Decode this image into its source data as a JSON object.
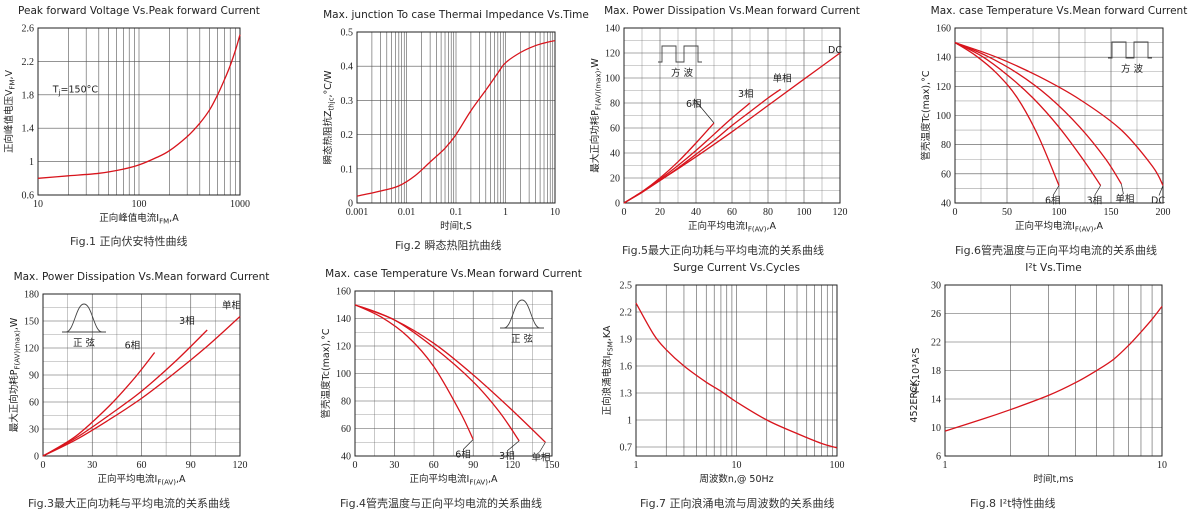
{
  "chart_data": [
    {
      "type": "line",
      "title": "Peak forward Voltage Vs.Peak forward Current",
      "xlabel": "正向峰值电流I_FM,A",
      "ylabel": "正向峰值电压V_FM,V",
      "caption": "Fig.1 正向伏安特性曲线",
      "xscale": "log",
      "xlim": [
        10,
        1000
      ],
      "ylim": [
        0.6,
        2.6
      ],
      "xticks": [
        10,
        100,
        1000
      ],
      "xtick_labels": [
        "10",
        "100",
        "1000"
      ],
      "yticks": [
        0.6,
        1,
        1.4,
        1.8,
        2.2,
        2.6
      ],
      "ytick_labels": [
        "0.6",
        "1",
        "1.4",
        "1.8",
        "2.2",
        "2.6"
      ],
      "grid": "x-log",
      "annotations": [
        {
          "text": "T_j=150°C",
          "x": 14,
          "y": 1.83
        }
      ],
      "series": [
        {
          "x": [
            10,
            20,
            40,
            70,
            100,
            150,
            200,
            300,
            400,
            500,
            600,
            700,
            800,
            900,
            1000
          ],
          "y": [
            0.8,
            0.83,
            0.86,
            0.91,
            0.96,
            1.05,
            1.13,
            1.3,
            1.46,
            1.62,
            1.8,
            1.98,
            2.15,
            2.33,
            2.52
          ]
        }
      ]
    },
    {
      "type": "line",
      "title": "Max. junction To case Thermai Impedance Vs.Time",
      "xlabel": "时间t,S",
      "ylabel": "瞬态热阻抗Z_thjc,°C/W",
      "caption": "Fig.2 瞬态热阻抗曲线",
      "xscale": "log",
      "xlim": [
        0.001,
        10
      ],
      "ylim": [
        0,
        0.5
      ],
      "xticks": [
        0.001,
        0.01,
        0.1,
        1,
        10
      ],
      "xtick_labels": [
        "0.001",
        "0.01",
        "0.1",
        "1",
        "10"
      ],
      "yticks": [
        0,
        0.1,
        0.2,
        0.3,
        0.4,
        0.5
      ],
      "ytick_labels": [
        "0",
        "0.1",
        "0.2",
        "0.3",
        "0.4",
        "0.5"
      ],
      "grid": "x-log",
      "series": [
        {
          "x": [
            0.001,
            0.003,
            0.007,
            0.015,
            0.03,
            0.06,
            0.1,
            0.2,
            0.4,
            0.7,
            1,
            2,
            4,
            7,
            10
          ],
          "y": [
            0.02,
            0.035,
            0.05,
            0.08,
            0.12,
            0.16,
            0.2,
            0.27,
            0.33,
            0.38,
            0.41,
            0.44,
            0.46,
            0.47,
            0.475
          ]
        }
      ]
    },
    {
      "type": "line",
      "title": "Max. Power Dissipation Vs.Mean forward Current",
      "xlabel": "正向平均电流I_F(AV),A",
      "ylabel": "最大正向功耗P_F(AV)(max),W",
      "caption": "Fig.5最大正向功耗与平均电流的关系曲线",
      "xlim": [
        0,
        120
      ],
      "ylim": [
        0,
        140
      ],
      "xticks": [
        0,
        20,
        40,
        60,
        80,
        100,
        120
      ],
      "xtick_labels": [
        "0",
        "20",
        "40",
        "60",
        "80",
        "100",
        "120"
      ],
      "yticks": [
        0,
        20,
        40,
        60,
        80,
        100,
        120,
        140
      ],
      "ytick_labels": [
        "0",
        "20",
        "40",
        "60",
        "80",
        "100",
        "120",
        "140"
      ],
      "grid": "both",
      "inset": {
        "shape": "square-wave",
        "label": "方 波"
      },
      "series": [
        {
          "name": "6相",
          "x": [
            0,
            10,
            20,
            30,
            40,
            50
          ],
          "y": [
            0,
            9,
            20,
            33,
            48,
            64
          ]
        },
        {
          "name": "3相",
          "x": [
            0,
            10,
            20,
            30,
            40,
            50,
            60,
            70
          ],
          "y": [
            0,
            9,
            19,
            30,
            42,
            55,
            68,
            80
          ]
        },
        {
          "name": "单相",
          "x": [
            0,
            10,
            20,
            30,
            40,
            50,
            60,
            70,
            80,
            87
          ],
          "y": [
            0,
            8.5,
            18,
            28,
            39,
            50,
            62,
            73,
            84,
            91
          ]
        },
        {
          "name": "DC",
          "x": [
            0,
            20,
            40,
            60,
            80,
            100,
            120
          ],
          "y": [
            0,
            18,
            37,
            57,
            78,
            99,
            120
          ]
        }
      ]
    },
    {
      "type": "line",
      "title": "Max. case Temperature Vs.Mean forward Current",
      "xlabel": "正向平均电流I_F(AV),A",
      "ylabel": "管壳温度Tc(max),°C",
      "caption": "Fig.6管壳温度与正向平均电流的关系曲线",
      "xlim": [
        0,
        200
      ],
      "ylim": [
        40,
        160
      ],
      "xticks": [
        0,
        50,
        100,
        150,
        200
      ],
      "xtick_labels": [
        "0",
        "50",
        "100",
        "150",
        "200"
      ],
      "yticks": [
        40,
        60,
        80,
        100,
        120,
        140,
        160
      ],
      "ytick_labels": [
        "40",
        "60",
        "80",
        "100",
        "120",
        "140",
        "160"
      ],
      "grid": "both",
      "inset": {
        "shape": "square-wave",
        "label": "方 波"
      },
      "series": [
        {
          "name": "6相",
          "x": [
            0,
            20,
            40,
            60,
            80,
            100
          ],
          "y": [
            150,
            141,
            129,
            112,
            86,
            52
          ]
        },
        {
          "name": "3相",
          "x": [
            0,
            25,
            50,
            75,
            100,
            125,
            140
          ],
          "y": [
            150,
            141,
            128,
            112,
            92,
            68,
            52
          ]
        },
        {
          "name": "单相",
          "x": [
            0,
            30,
            60,
            90,
            120,
            145,
            160
          ],
          "y": [
            150,
            141,
            129,
            113,
            92,
            70,
            53
          ]
        },
        {
          "name": "DC",
          "x": [
            0,
            40,
            80,
            120,
            160,
            190,
            200
          ],
          "y": [
            150,
            140,
            127,
            111,
            90,
            65,
            52
          ]
        }
      ]
    },
    {
      "type": "line",
      "title": "Max. Power Dissipation Vs.Mean forward Current",
      "xlabel": "正向平均电流I_F(AV),A",
      "ylabel": "最大正向功耗P_F(AV)(max),W",
      "caption": "Fig.3最大正向功耗与平均电流的关系曲线",
      "xlim": [
        0,
        120
      ],
      "ylim": [
        0,
        180
      ],
      "xticks": [
        0,
        30,
        60,
        90,
        120
      ],
      "xtick_labels": [
        "0",
        "30",
        "60",
        "90",
        "120"
      ],
      "yticks": [
        0,
        30,
        60,
        90,
        120,
        150,
        180
      ],
      "ytick_labels": [
        "0",
        "30",
        "60",
        "90",
        "120",
        "150",
        "180"
      ],
      "grid": "both",
      "inset": {
        "shape": "sine-half",
        "label": "正 弦"
      },
      "series": [
        {
          "name": "6相",
          "x": [
            0,
            20,
            40,
            55,
            68
          ],
          "y": [
            0,
            22,
            55,
            85,
            115
          ]
        },
        {
          "name": "3相",
          "x": [
            0,
            20,
            40,
            60,
            80,
            100
          ],
          "y": [
            0,
            20,
            45,
            72,
            104,
            140
          ]
        },
        {
          "name": "单相",
          "x": [
            0,
            20,
            40,
            60,
            80,
            100,
            120
          ],
          "y": [
            0,
            18,
            40,
            64,
            92,
            122,
            155
          ]
        }
      ]
    },
    {
      "type": "line",
      "title": "Max. case Temperature Vs.Mean forward Current",
      "xlabel": "正向平均电流I_F(AV),A",
      "ylabel": "管壳温度Tc(max),°C",
      "caption": "Fig.4管壳温度与正向平均电流的关系曲线",
      "xlim": [
        0,
        150
      ],
      "ylim": [
        40,
        160
      ],
      "xticks": [
        0,
        30,
        60,
        90,
        120,
        150
      ],
      "xtick_labels": [
        "0",
        "30",
        "60",
        "90",
        "120",
        "150"
      ],
      "yticks": [
        40,
        60,
        80,
        100,
        120,
        140,
        160
      ],
      "ytick_labels": [
        "40",
        "60",
        "80",
        "100",
        "120",
        "140",
        "160"
      ],
      "grid": "both",
      "inset": {
        "shape": "sine-half",
        "label": "正 弦"
      },
      "series": [
        {
          "name": "6相",
          "x": [
            0,
            20,
            40,
            60,
            80,
            90
          ],
          "y": [
            150,
            141,
            127,
            105,
            72,
            52
          ]
        },
        {
          "name": "3相",
          "x": [
            0,
            30,
            60,
            90,
            110,
            125
          ],
          "y": [
            150,
            139,
            119,
            94,
            72,
            51
          ]
        },
        {
          "name": "单相",
          "x": [
            0,
            30,
            60,
            90,
            120,
            145
          ],
          "y": [
            150,
            139,
            122,
            99,
            73,
            50
          ]
        }
      ]
    },
    {
      "type": "line",
      "title": "Surge Current Vs.Cycles",
      "xlabel": "周波数n,@ 50Hz",
      "ylabel": "正向浪涌电流I_FSM,KA",
      "caption": "Fig.7 正向浪涌电流与周波数的关系曲线",
      "xscale": "log",
      "xlim": [
        1,
        100
      ],
      "ylim": [
        0.6,
        2.5
      ],
      "xticks": [
        1,
        10,
        100
      ],
      "xtick_labels": [
        "1",
        "10",
        "100"
      ],
      "yticks": [
        0.7,
        1,
        1.3,
        1.6,
        1.9,
        2.2,
        2.5
      ],
      "ytick_labels": [
        "0.7",
        "1",
        "1.3",
        "1.6",
        "1.9",
        "2.2",
        "2.5"
      ],
      "grid": "x-log",
      "series": [
        {
          "x": [
            1,
            1.5,
            2,
            3,
            5,
            7,
            10,
            20,
            40,
            70,
            100
          ],
          "y": [
            2.3,
            1.95,
            1.78,
            1.6,
            1.42,
            1.32,
            1.2,
            1.0,
            0.85,
            0.74,
            0.69
          ]
        }
      ]
    },
    {
      "type": "line",
      "title": "I²t Vs.Time",
      "xlabel": "时间t,ms",
      "ylabel": "I²t,10³A²S",
      "ylabel_extra": "452ERCK",
      "caption": "Fig.8 I²t特性曲线",
      "xscale": "log",
      "xlim": [
        1,
        10
      ],
      "ylim": [
        6,
        30
      ],
      "xticks": [
        1,
        10
      ],
      "xtick_labels": [
        "1",
        "10"
      ],
      "yticks": [
        6,
        10,
        14,
        18,
        22,
        26,
        30
      ],
      "ytick_labels": [
        "6",
        "10",
        "14",
        "18",
        "22",
        "26",
        "30"
      ],
      "grid": "x-log",
      "series": [
        {
          "x": [
            1,
            1.5,
            2,
            3,
            4,
            5,
            6,
            7,
            8,
            9,
            10
          ],
          "y": [
            9.5,
            11.2,
            12.5,
            14.5,
            16.3,
            18.0,
            19.6,
            21.5,
            23.4,
            25.2,
            27.0
          ]
        }
      ]
    }
  ]
}
